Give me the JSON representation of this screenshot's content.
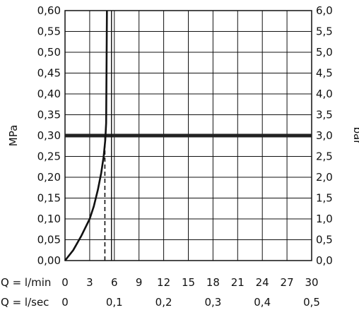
{
  "chart_data": {
    "type": "line",
    "title": "",
    "ylabel_left": "MPa",
    "ylabel_right": "bar",
    "xlabel_top_row": "Q = l/min",
    "xlabel_bottom_row": "Q = l/sec",
    "x_ticks_lmin": [
      "0",
      "3",
      "6",
      "9",
      "12",
      "15",
      "18",
      "21",
      "24",
      "27",
      "30"
    ],
    "x_ticks_lsec": [
      "0",
      "0,1",
      "0,2",
      "0,3",
      "0,4",
      "0,5"
    ],
    "y_ticks_mpa": [
      "0,00",
      "0,05",
      "0,10",
      "0,15",
      "0,20",
      "0,25",
      "0,30",
      "0,35",
      "0,40",
      "0,45",
      "0,50",
      "0,55",
      "0,60"
    ],
    "y_ticks_bar": [
      "0,0",
      "0,5",
      "1,0",
      "1,5",
      "2,0",
      "2,5",
      "3,0",
      "3,5",
      "4,0",
      "4,5",
      "5,0",
      "5,5",
      "6,0"
    ],
    "xlim_lmin": [
      0,
      30
    ],
    "ylim_mpa": [
      0,
      0.6
    ],
    "grid": true,
    "series": [
      {
        "x_lmin": [
          0,
          1,
          2,
          3,
          3.5,
          4,
          4.4,
          4.7,
          4.9,
          5.0,
          5.05,
          5.1
        ],
        "y_mpa": [
          0,
          0.025,
          0.06,
          0.1,
          0.13,
          0.17,
          0.21,
          0.25,
          0.29,
          0.33,
          0.45,
          0.6
        ]
      }
    ],
    "annotations": [
      {
        "type": "hline",
        "y_mpa": 0.3,
        "style": "thick"
      },
      {
        "type": "vline",
        "x_lmin": 4.85,
        "y_from_mpa": 0,
        "y_to_mpa": 0.3,
        "style": "dashed"
      },
      {
        "type": "vline",
        "x_lmin": 5.65,
        "y_from_mpa": 0,
        "y_to_mpa": 0.6,
        "style": "solid"
      }
    ]
  }
}
